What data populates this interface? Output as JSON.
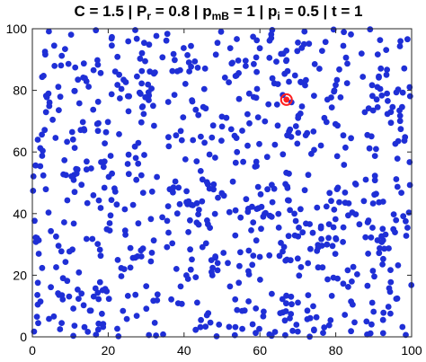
{
  "chart_data": {
    "type": "scatter",
    "title_parts": {
      "c_label": "C = 1.5",
      "sep": " | ",
      "p_letter": "P",
      "r_sub": "r",
      "pr_value": " = 0.8",
      "pm_letter": "p",
      "mb_sub": "mB",
      "pmb_value": " = 1",
      "pi_letter": "p",
      "i_sub": "i",
      "pi_value": " = 0.5",
      "t_label": "t = 1"
    },
    "xlim": [
      0,
      100
    ],
    "ylim": [
      0,
      100
    ],
    "xticks": [
      0,
      20,
      40,
      60,
      80,
      100
    ],
    "yticks": [
      0,
      20,
      40,
      60,
      80,
      100
    ],
    "xtick_labels": [
      "0",
      "20",
      "40",
      "60",
      "80",
      "100"
    ],
    "ytick_labels": [
      "0",
      "20",
      "40",
      "60",
      "80",
      "100"
    ],
    "grid": false,
    "point_color": "#1f2fd6",
    "highlight": {
      "x": 67,
      "y": 77,
      "color": "#ff2020"
    },
    "series": [
      {
        "color": "#1f2fd6",
        "note": "random spatial distribution of ~800 agents",
        "seed_count": 800
      }
    ]
  }
}
